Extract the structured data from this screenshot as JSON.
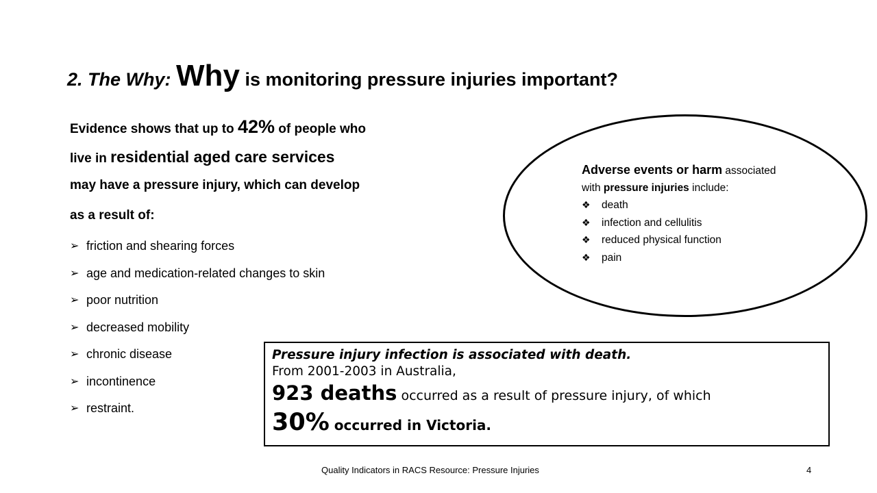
{
  "title": {
    "lead": "2. The Why:",
    "emphasis": "Why",
    "rest": "is monitoring pressure injuries important?"
  },
  "intro": {
    "l1_a": "Evidence shows that up to",
    "l1_pct": "42%",
    "l1_b": "of people who",
    "l2_a": "live in",
    "l2_b": "residential aged care services",
    "l3": "may have a pressure injury, which can develop",
    "l4": "as a result of:"
  },
  "causes": [
    "friction and shearing forces",
    "age and medication-related changes to skin",
    "poor nutrition",
    "decreased mobility",
    "chronic disease",
    "incontinence",
    "restraint."
  ],
  "adverse": {
    "head": "Adverse events or harm",
    "head_rest": "associated",
    "l2_a": "with",
    "l2_b": "pressure injuries",
    "l2_c": "include:",
    "items": [
      "death",
      "infection and cellulitis",
      "reduced physical function",
      "pain"
    ]
  },
  "callout": {
    "l1": "Pressure injury infection is associated with death.",
    "l2": "From 2001-2003 in Australia,",
    "l3_big": "923 deaths",
    "l3_rest": "occurred as a result of pressure injury, of which",
    "l4_big": "30%",
    "l4_rest": "occurred in Victoria."
  },
  "footer": {
    "text": "Quality Indicators in RACS Resource: Pressure Injuries",
    "page": "4"
  }
}
